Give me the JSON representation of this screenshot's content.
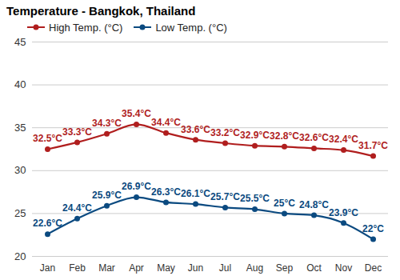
{
  "chart_data": {
    "type": "line",
    "title": "Temperature - Bangkok, Thailand",
    "categories": [
      "Jan",
      "Feb",
      "Mar",
      "Apr",
      "May",
      "Jun",
      "Jul",
      "Aug",
      "Sep",
      "Oct",
      "Nov",
      "Dec"
    ],
    "series": [
      {
        "name": "High Temp. (°C)",
        "color": "#b01e1e",
        "values": [
          32.5,
          33.3,
          34.3,
          35.4,
          34.4,
          33.6,
          33.2,
          32.9,
          32.8,
          32.6,
          32.4,
          31.7
        ],
        "value_labels": [
          "32.5°C",
          "33.3°C",
          "34.3°C",
          "35.4°C",
          "34.4°C",
          "33.6°C",
          "33.2°C",
          "32.9°C",
          "32.8°C",
          "32.6°C",
          "32.4°C",
          "31.7°C"
        ]
      },
      {
        "name": "Low Temp. (°C)",
        "color": "#0b4a80",
        "values": [
          22.6,
          24.4,
          25.9,
          26.9,
          26.3,
          26.1,
          25.7,
          25.5,
          25,
          24.8,
          23.9,
          22
        ],
        "value_labels": [
          "22.6°C",
          "24.4°C",
          "25.9°C",
          "26.9°C",
          "26.3°C",
          "26.1°C",
          "25.7°C",
          "25.5°C",
          "25°C",
          "24.8°C",
          "23.9°C",
          "22°C"
        ]
      }
    ],
    "ylim": [
      20,
      45
    ],
    "yticks": [
      20,
      25,
      30,
      35,
      40,
      45
    ],
    "grid": true,
    "legend": "top-left",
    "data_labels": true,
    "marker": "circle"
  }
}
